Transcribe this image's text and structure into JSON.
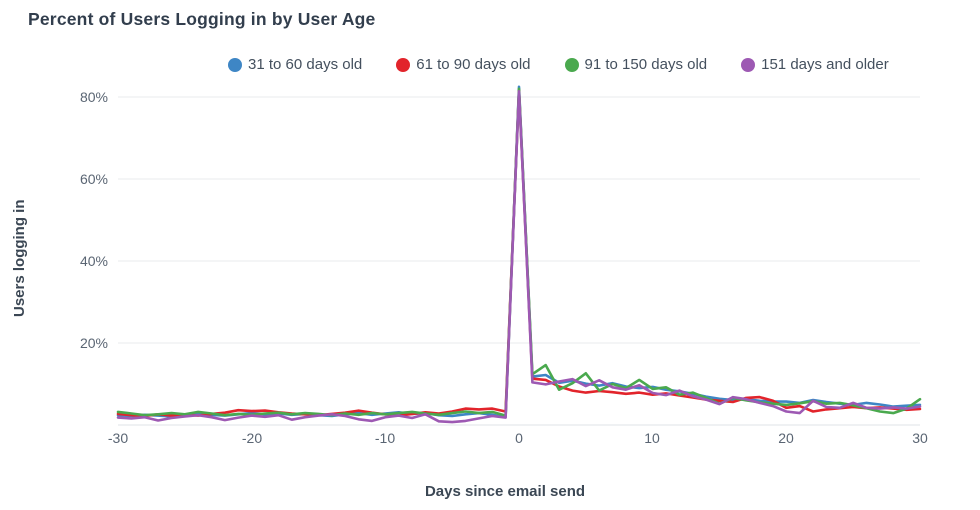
{
  "title": "Percent of Users Logging in by User Age",
  "colors": {
    "blue": "#3e86c5",
    "red": "#e2242b",
    "green": "#4aa94e",
    "purple": "#9d59b3",
    "title_text": "#323e4d",
    "axis_text": "#5a6573",
    "gridline": "#e9ebee",
    "axis_line": "#dfe3e7"
  },
  "chart_data": {
    "type": "line",
    "title": "Percent of Users Logging in by User Age",
    "xlabel": "Days since email send",
    "ylabel": "Users logging in",
    "x_ticks": [
      "-30",
      "-20",
      "-10",
      "0",
      "10",
      "20",
      "30"
    ],
    "y_ticks": [
      "80%",
      "60%",
      "40%",
      "20%"
    ],
    "xlim": [
      -30,
      30
    ],
    "ylim": [
      0,
      85
    ],
    "grid": "horizontal",
    "legend_position": "top",
    "x": [
      -30,
      -29,
      -28,
      -27,
      -26,
      -25,
      -24,
      -23,
      -22,
      -21,
      -20,
      -19,
      -18,
      -17,
      -16,
      -15,
      -14,
      -13,
      -12,
      -11,
      -10,
      -9,
      -8,
      -7,
      -6,
      -5,
      -4,
      -3,
      -2,
      -1,
      0,
      1,
      2,
      3,
      4,
      5,
      6,
      7,
      8,
      9,
      10,
      11,
      12,
      13,
      14,
      15,
      16,
      17,
      18,
      19,
      20,
      21,
      22,
      23,
      24,
      25,
      26,
      27,
      28,
      29,
      30
    ],
    "series": [
      {
        "name": "31 to 60 days old",
        "color": "#3e86c5",
        "values": [
          2.4,
          2.2,
          2.5,
          2.3,
          2.1,
          2.4,
          2.8,
          2.5,
          2.3,
          2.6,
          2.9,
          2.6,
          2.8,
          2.5,
          2.7,
          2.4,
          2.2,
          2.6,
          2.9,
          2.5,
          2.8,
          3.1,
          2.7,
          2.9,
          2.4,
          2.2,
          2.6,
          2.9,
          2.5,
          1.9,
          82.5,
          11.8,
          12.2,
          10.3,
          10.8,
          10.1,
          9.6,
          10.2,
          9.4,
          9.0,
          9.3,
          8.6,
          8.2,
          7.6,
          6.9,
          6.4,
          6.1,
          6.3,
          5.9,
          5.7,
          5.7,
          5.4,
          6.1,
          5.6,
          5.2,
          4.9,
          5.4,
          5.0,
          4.5,
          4.7,
          4.9
        ]
      },
      {
        "name": "61 to 90 days old",
        "color": "#e2242b",
        "values": [
          2.7,
          2.4,
          2.2,
          2.6,
          2.3,
          2.5,
          2.3,
          2.7,
          3.0,
          3.6,
          3.4,
          3.5,
          3.1,
          2.8,
          2.6,
          2.4,
          2.7,
          3.0,
          3.5,
          3.0,
          2.6,
          2.3,
          2.7,
          3.1,
          2.8,
          3.3,
          4.0,
          3.8,
          4.0,
          3.3,
          81.6,
          11.3,
          11.0,
          9.4,
          8.4,
          7.9,
          8.3,
          8.0,
          7.6,
          7.9,
          7.4,
          7.7,
          7.2,
          6.7,
          6.2,
          5.9,
          5.6,
          6.6,
          6.8,
          5.9,
          4.2,
          4.6,
          3.3,
          3.8,
          4.1,
          4.4,
          4.1,
          4.3,
          4.0,
          3.7,
          3.9
        ]
      },
      {
        "name": "91 to 150 days old",
        "color": "#4aa94e",
        "values": [
          3.2,
          2.8,
          2.4,
          2.6,
          2.9,
          2.6,
          3.2,
          2.8,
          2.4,
          2.7,
          2.5,
          2.8,
          3.0,
          2.6,
          2.9,
          2.7,
          2.4,
          2.8,
          2.5,
          2.9,
          2.6,
          2.9,
          3.2,
          2.8,
          2.5,
          2.9,
          3.3,
          2.9,
          3.2,
          2.3,
          82.0,
          12.4,
          14.6,
          8.6,
          10.2,
          12.6,
          8.4,
          10.0,
          9.0,
          11.0,
          8.8,
          9.2,
          7.4,
          7.9,
          6.6,
          5.2,
          6.6,
          6.0,
          5.5,
          5.2,
          4.9,
          5.3,
          5.8,
          5.2,
          5.4,
          4.8,
          4.1,
          3.3,
          2.9,
          4.0,
          6.3
        ]
      },
      {
        "name": "151 days and older",
        "color": "#9d59b3",
        "values": [
          1.8,
          1.6,
          1.9,
          1.1,
          1.7,
          2.1,
          2.4,
          1.9,
          1.2,
          1.8,
          2.3,
          2.0,
          2.4,
          1.3,
          1.9,
          2.3,
          2.6,
          2.2,
          1.4,
          1.0,
          1.9,
          2.3,
          1.7,
          2.6,
          0.9,
          0.7,
          1.0,
          1.6,
          2.2,
          1.8,
          81.4,
          10.4,
          9.9,
          10.6,
          11.2,
          9.5,
          10.9,
          9.2,
          8.6,
          9.7,
          7.8,
          7.3,
          8.4,
          7.0,
          6.2,
          5.1,
          6.8,
          6.3,
          5.4,
          4.6,
          3.3,
          2.9,
          5.9,
          4.4,
          4.2,
          5.4,
          4.2,
          4.0,
          4.3,
          4.0,
          4.5
        ]
      }
    ]
  }
}
